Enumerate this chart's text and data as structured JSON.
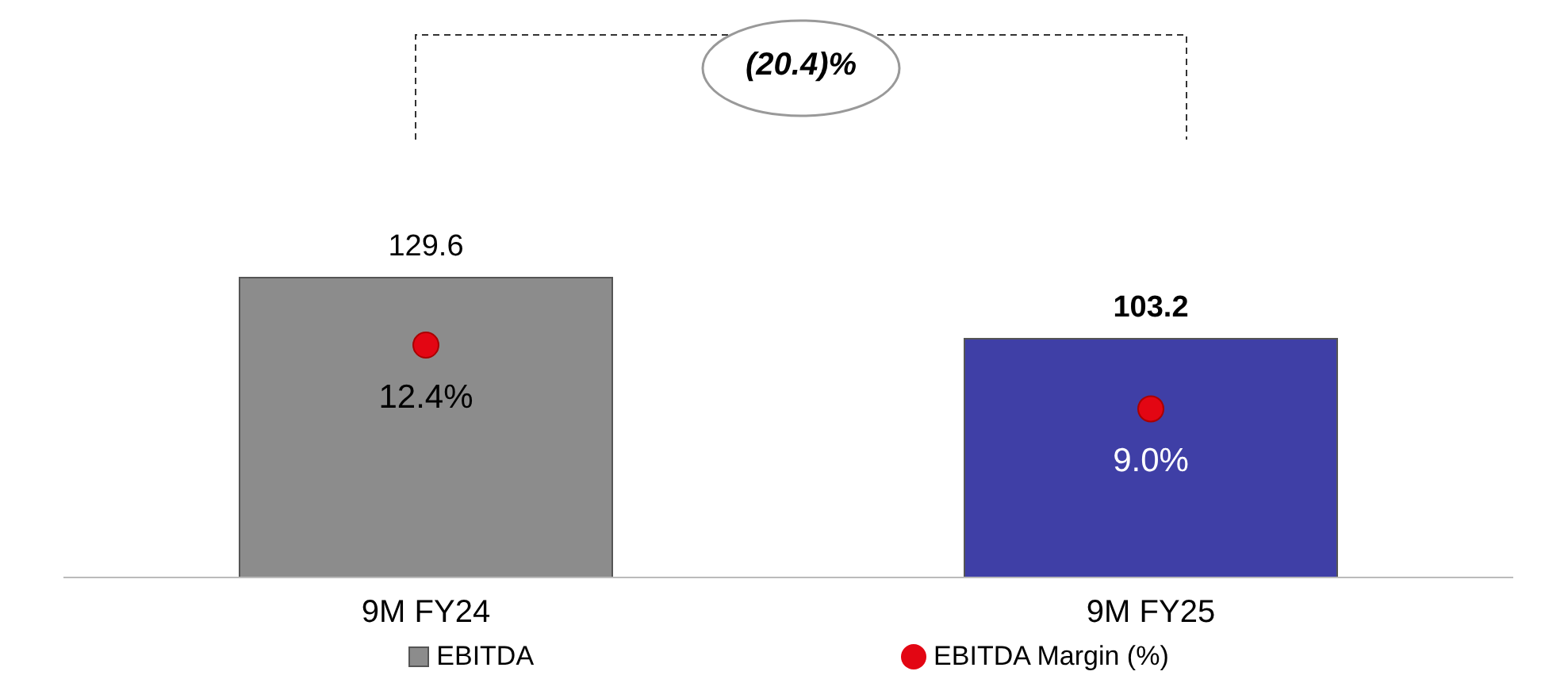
{
  "chart_data": {
    "type": "bar",
    "categories": [
      "9M FY24",
      "9M FY25"
    ],
    "series": [
      {
        "name": "EBITDA",
        "colors": [
          "#8c8c8c",
          "#3f3fa6"
        ],
        "color": "#8c8c8c",
        "values": [
          129.6,
          103.2
        ],
        "value_labels": [
          "129.6",
          "103.2"
        ]
      },
      {
        "name": "EBITDA Margin (%)",
        "type": "scatter",
        "axis": "y2",
        "color": "#e30613",
        "values": [
          12.4,
          9.0
        ],
        "value_labels": [
          "12.4%",
          "9.0%"
        ]
      }
    ],
    "annotations": [
      "(20.4)%"
    ],
    "legend": "bottom",
    "marker": "circle"
  }
}
